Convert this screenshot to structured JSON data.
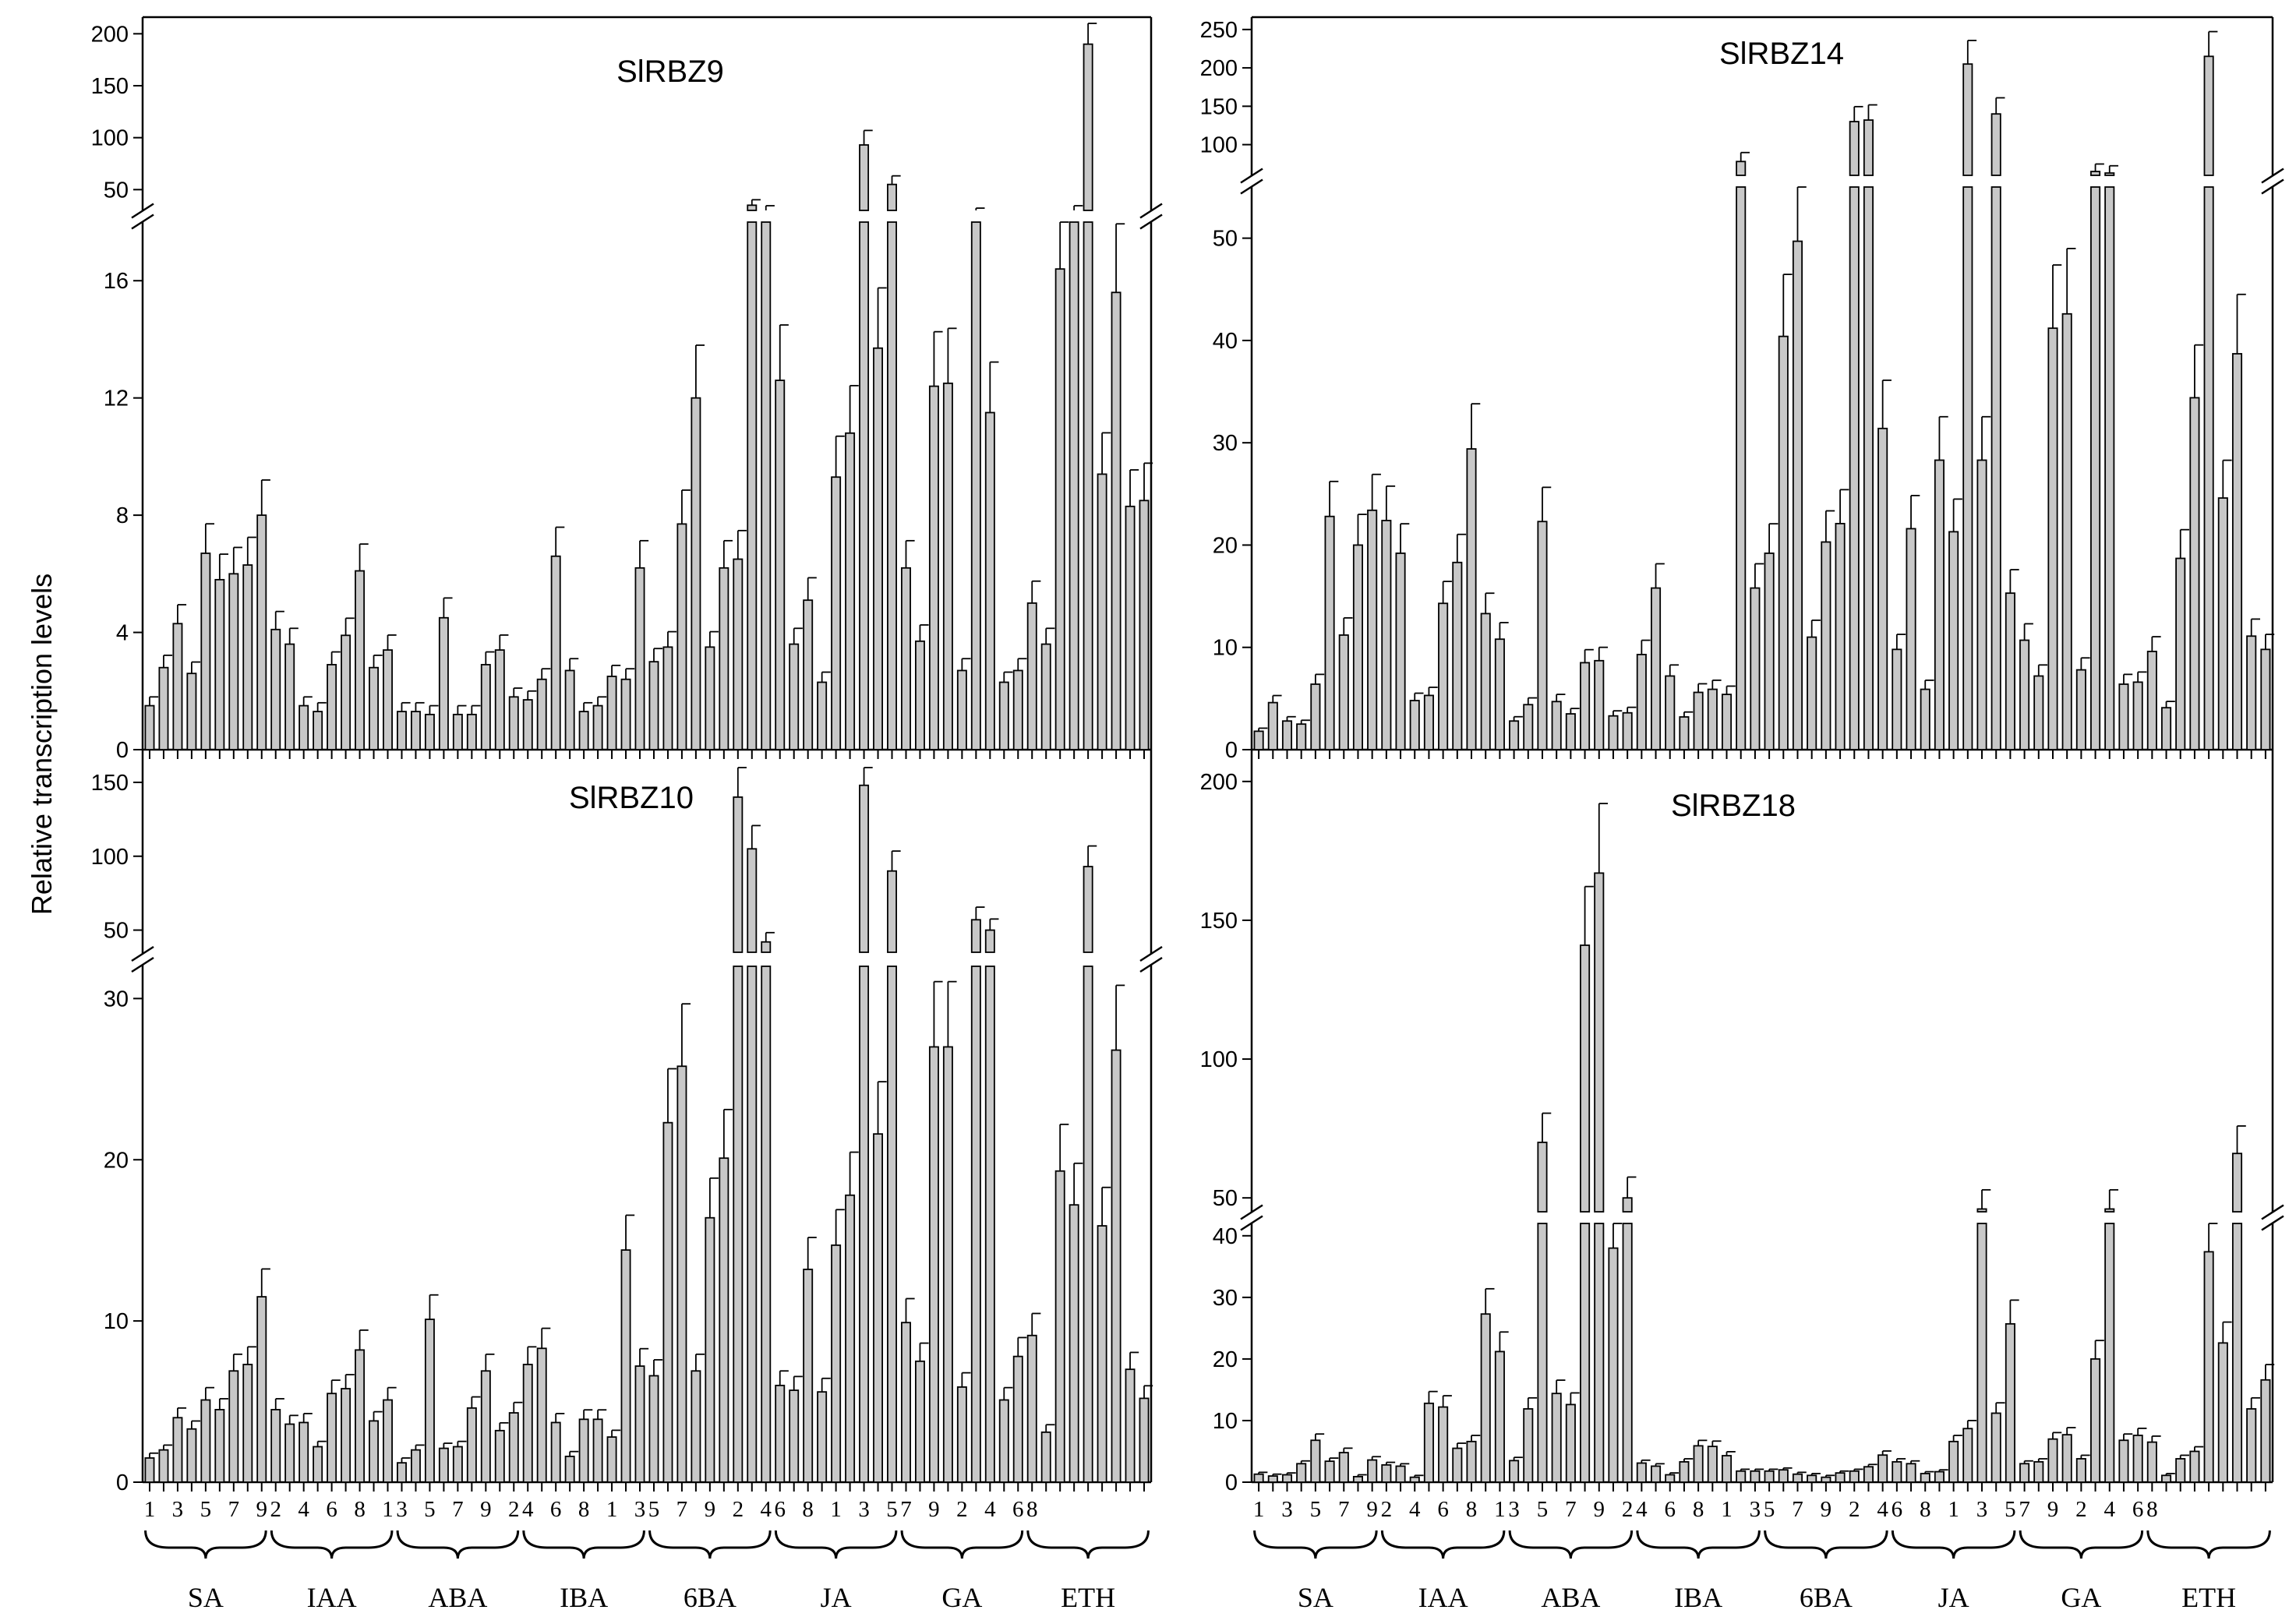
{
  "figure": {
    "ylabel": "Relative transcription levels",
    "treatments": [
      "SA",
      "IAA",
      "ABA",
      "IBA",
      "6BA",
      "JA",
      "GA",
      "ETH"
    ],
    "sample_labels": [
      "1",
      "2",
      "3",
      "4",
      "5",
      "6",
      "7",
      "8",
      "9"
    ]
  },
  "colors": {
    "bar_fill": "#c8c8c8",
    "bar_stroke": "#000000",
    "axis": "#000000",
    "background": "#ffffff"
  },
  "chart_data": [
    {
      "type": "bar",
      "title": "SlRBZ9",
      "ylabel": "Relative transcription levels",
      "axis_breaks": true,
      "lower_ylim": [
        0,
        18
      ],
      "lower_ticks": [
        0,
        4,
        8,
        12,
        16
      ],
      "upper_ylim": [
        30,
        210
      ],
      "upper_ticks": [
        50,
        100,
        150,
        200
      ],
      "x_tick_labels": [
        "1",
        "3",
        "5",
        "7",
        "9",
        "2",
        "4",
        "6",
        "8",
        "1",
        "3",
        "5",
        "7",
        "9",
        "2",
        "4",
        "6",
        "8",
        "1",
        "3",
        "5",
        "7",
        "9",
        "2",
        "4",
        "6",
        "8",
        "1",
        "3",
        "5",
        "7",
        "9",
        "2",
        "4",
        "6",
        "8"
      ],
      "groups": [
        {
          "name": "SA",
          "values": [
            1.5,
            2.8,
            4.3,
            2.6,
            6.7,
            5.8,
            6.0,
            6.3,
            8.0
          ]
        },
        {
          "name": "IAA",
          "values": [
            4.1,
            3.6,
            1.5,
            1.3,
            2.9,
            3.9,
            6.1,
            2.8,
            3.4
          ]
        },
        {
          "name": "ABA",
          "values": [
            1.3,
            1.3,
            1.2,
            4.5,
            1.2,
            1.2,
            2.9,
            3.4,
            1.8
          ]
        },
        {
          "name": "IBA",
          "values": [
            1.7,
            2.4,
            6.6,
            2.7,
            1.3,
            1.5,
            2.5,
            2.4,
            6.2
          ]
        },
        {
          "name": "6BA",
          "values": [
            3.0,
            3.5,
            7.7,
            12.0,
            3.5,
            6.2,
            6.5,
            35,
            30
          ]
        },
        {
          "name": "JA",
          "values": [
            12.6,
            3.6,
            5.1,
            2.3,
            9.3,
            10.8,
            93,
            13.7,
            55
          ]
        },
        {
          "name": "GA",
          "values": [
            6.2,
            3.7,
            12.4,
            12.5,
            2.7,
            28,
            11.5,
            2.3,
            2.7
          ]
        },
        {
          "name": "ETH",
          "values": [
            5.0,
            3.6,
            16.4,
            30,
            190,
            9.4,
            15.6,
            8.3,
            8.5
          ]
        }
      ]
    },
    {
      "type": "bar",
      "title": "SlRBZ14",
      "ylabel": "Relative transcription levels",
      "axis_breaks": true,
      "lower_ylim": [
        0,
        55
      ],
      "lower_ticks": [
        0,
        10,
        20,
        30,
        40,
        50
      ],
      "upper_ylim": [
        60,
        260
      ],
      "upper_ticks": [
        100,
        150,
        200,
        250
      ],
      "x_tick_labels": [],
      "groups": [
        {
          "name": "SA",
          "values": [
            1.8,
            4.6,
            2.8,
            2.5,
            6.4,
            22.8,
            11.2,
            20.0,
            23.4
          ]
        },
        {
          "name": "IAA",
          "values": [
            22.4,
            19.2,
            4.8,
            5.3,
            14.3,
            18.3,
            29.4,
            13.3,
            10.8
          ]
        },
        {
          "name": "ABA",
          "values": [
            2.8,
            4.4,
            22.3,
            4.7,
            3.5,
            8.5,
            8.7,
            3.3,
            3.6
          ]
        },
        {
          "name": "IBA",
          "values": [
            9.3,
            15.8,
            7.2,
            3.2,
            5.6,
            5.9,
            5.4,
            78,
            15.8
          ]
        },
        {
          "name": "6BA",
          "values": [
            19.2,
            40.4,
            49.7,
            11.0,
            20.3,
            22.1,
            130,
            132,
            31.4
          ]
        },
        {
          "name": "JA",
          "values": [
            9.8,
            21.6,
            5.9,
            28.3,
            21.3,
            205,
            28.3,
            140,
            15.3
          ]
        },
        {
          "name": "GA",
          "values": [
            10.7,
            7.2,
            41.2,
            42.6,
            7.8,
            65,
            63,
            6.4,
            6.6
          ]
        },
        {
          "name": "ETH",
          "values": [
            9.6,
            4.1,
            18.7,
            34.4,
            215,
            24.6,
            38.7,
            11.1,
            9.8
          ]
        }
      ]
    },
    {
      "type": "bar",
      "title": "SlRBZ10",
      "ylabel": "Relative transcription levels",
      "axis_breaks": true,
      "lower_ylim": [
        0,
        32
      ],
      "lower_ticks": [
        0,
        10,
        20,
        30
      ],
      "upper_ylim": [
        35,
        160
      ],
      "upper_ticks": [
        50,
        100,
        150
      ],
      "x_tick_labels": [
        "1",
        "3",
        "5",
        "7",
        "9",
        "2",
        "4",
        "6",
        "8",
        "1",
        "3",
        "5",
        "7",
        "9",
        "2",
        "4",
        "6",
        "8",
        "1",
        "3",
        "5",
        "7",
        "9",
        "2",
        "4",
        "6",
        "8",
        "1",
        "3",
        "5",
        "7",
        "9",
        "2",
        "4",
        "6",
        "8"
      ],
      "groups": [
        {
          "name": "SA",
          "values": [
            1.5,
            2.0,
            4.0,
            3.3,
            5.1,
            4.5,
            6.9,
            7.3,
            11.5
          ]
        },
        {
          "name": "IAA",
          "values": [
            4.5,
            3.6,
            3.7,
            2.2,
            5.5,
            5.8,
            8.2,
            3.8,
            5.1
          ]
        },
        {
          "name": "ABA",
          "values": [
            1.2,
            2.0,
            10.1,
            2.1,
            2.2,
            4.6,
            6.9,
            3.2,
            4.3
          ]
        },
        {
          "name": "IBA",
          "values": [
            7.3,
            8.3,
            3.7,
            1.6,
            3.9,
            3.9,
            2.8,
            14.4,
            7.2
          ]
        },
        {
          "name": "6BA",
          "values": [
            6.6,
            22.3,
            25.8,
            6.9,
            16.4,
            20.1,
            140,
            105,
            42
          ]
        },
        {
          "name": "JA",
          "values": [
            6.0,
            5.7,
            13.2,
            5.6,
            14.7,
            17.8,
            148,
            21.6,
            90
          ]
        },
        {
          "name": "GA",
          "values": [
            9.9,
            7.5,
            27.0,
            27.0,
            5.9,
            57,
            50,
            5.1,
            7.8
          ]
        },
        {
          "name": "ETH",
          "values": [
            9.1,
            3.1,
            19.3,
            17.2,
            93,
            15.9,
            26.8,
            7.0,
            5.2
          ]
        }
      ]
    },
    {
      "type": "bar",
      "title": "SlRBZ18",
      "ylabel": "Relative transcription levels",
      "axis_breaks": true,
      "lower_ylim": [
        0,
        42
      ],
      "lower_ticks": [
        0,
        10,
        20,
        30,
        40
      ],
      "upper_ylim": [
        45,
        205
      ],
      "upper_ticks": [
        50,
        100,
        150,
        200
      ],
      "x_tick_labels": [
        "1",
        "3",
        "5",
        "7",
        "9",
        "2",
        "4",
        "6",
        "8",
        "1",
        "3",
        "5",
        "7",
        "9",
        "2",
        "4",
        "6",
        "8",
        "1",
        "3",
        "5",
        "7",
        "9",
        "2",
        "4",
        "6",
        "8",
        "1",
        "3",
        "5",
        "7",
        "9",
        "2",
        "4",
        "6",
        "8"
      ],
      "groups": [
        {
          "name": "SA",
          "values": [
            1.3,
            1.0,
            1.2,
            3.0,
            6.8,
            3.4,
            4.8,
            0.9,
            3.6
          ]
        },
        {
          "name": "IAA",
          "values": [
            2.8,
            2.6,
            0.8,
            12.8,
            12.2,
            5.5,
            6.6,
            27.3,
            21.2
          ]
        },
        {
          "name": "ABA",
          "values": [
            3.5,
            11.9,
            70,
            14.4,
            12.6,
            141,
            167,
            38,
            50
          ]
        },
        {
          "name": "IBA",
          "values": [
            3.1,
            2.6,
            1.2,
            3.3,
            5.9,
            5.8,
            4.3,
            1.8,
            1.8
          ]
        },
        {
          "name": "6BA",
          "values": [
            1.8,
            2.0,
            1.3,
            1.1,
            0.8,
            1.5,
            1.8,
            2.5,
            4.4
          ]
        },
        {
          "name": "JA",
          "values": [
            3.3,
            3.0,
            1.4,
            1.7,
            6.6,
            8.7,
            46,
            11.2,
            25.7
          ]
        },
        {
          "name": "GA",
          "values": [
            3.0,
            3.3,
            7.0,
            7.7,
            3.8,
            20,
            46,
            6.8,
            7.6
          ]
        },
        {
          "name": "ETH",
          "values": [
            6.5,
            1.1,
            3.8,
            5.0,
            37.4,
            22.6,
            66,
            11.9,
            16.6
          ]
        }
      ]
    }
  ]
}
